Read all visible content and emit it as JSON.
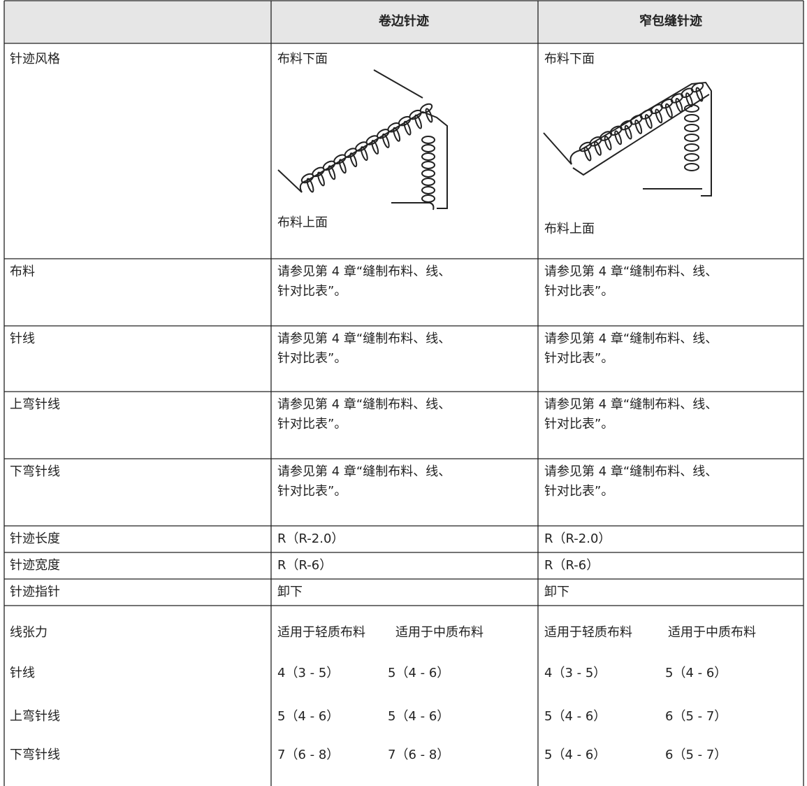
{
  "header": {
    "columns": [
      "卷边针迹",
      "窄包缝针迹"
    ]
  },
  "style_row": {
    "label": "针迹风格",
    "cells": [
      {
        "top": "布料下面",
        "bottom": "布料上面"
      },
      {
        "top": "布料下面",
        "bottom": "布料上面"
      }
    ]
  },
  "rows": [
    {
      "label": "布料",
      "cells": [
        [
          "请参见第 4 章“缝制布料、线、",
          "针对比表”。"
        ],
        [
          "请参见第 4 章“缝制布料、线、",
          "针对比表”。"
        ]
      ]
    },
    {
      "label": "针线",
      "cells": [
        [
          "请参见第 4 章“缝制布料、线、",
          "针对比表”。"
        ],
        [
          "请参见第 4 章“缝制布料、线、",
          "针对比表”。"
        ]
      ]
    },
    {
      "label": "上弯针线",
      "cells": [
        [
          "请参见第 4 章“缝制布料、线、",
          "针对比表”。"
        ],
        [
          "请参见第 4 章“缝制布料、线、",
          "针对比表”。"
        ]
      ]
    },
    {
      "label": "下弯针线",
      "cells": [
        [
          "请参见第 4 章“缝制布料、线、",
          "针对比表”。"
        ],
        [
          "请参见第 4 章“缝制布料、线、",
          "针对比表”。"
        ]
      ]
    },
    {
      "label": "针迹长度",
      "cells": [
        [
          "R（R-2.0）"
        ],
        [
          "R（R-2.0）"
        ]
      ]
    },
    {
      "label": "针迹宽度",
      "cells": [
        [
          "R（R-6）"
        ],
        [
          "R（R-6）"
        ]
      ]
    },
    {
      "label": "针迹指针",
      "cells": [
        [
          "卸下"
        ],
        [
          "卸下"
        ]
      ]
    }
  ],
  "tension": {
    "label": "线张力",
    "cells": [
      [
        "适用于轻质布料",
        "适用于中质布料"
      ],
      [
        "适用于轻质布料",
        "适用于中质布料"
      ]
    ],
    "rows": [
      {
        "label": "针线",
        "cells": [
          [
            "4（3 - 5）",
            "5（4 - 6）"
          ],
          [
            "4（3 - 5）",
            "5（4 - 6）"
          ]
        ]
      },
      {
        "label": "上弯针线",
        "cells": [
          [
            "5（4 - 6）",
            "5（4 - 6）"
          ],
          [
            "5（4 - 6）",
            "6（5 - 7）"
          ]
        ]
      },
      {
        "label": "下弯针线",
        "cells": [
          [
            "7（6 - 8）",
            "7（6 - 8）"
          ],
          [
            "5（4 - 6）",
            "6（5 - 7）"
          ]
        ]
      }
    ]
  }
}
